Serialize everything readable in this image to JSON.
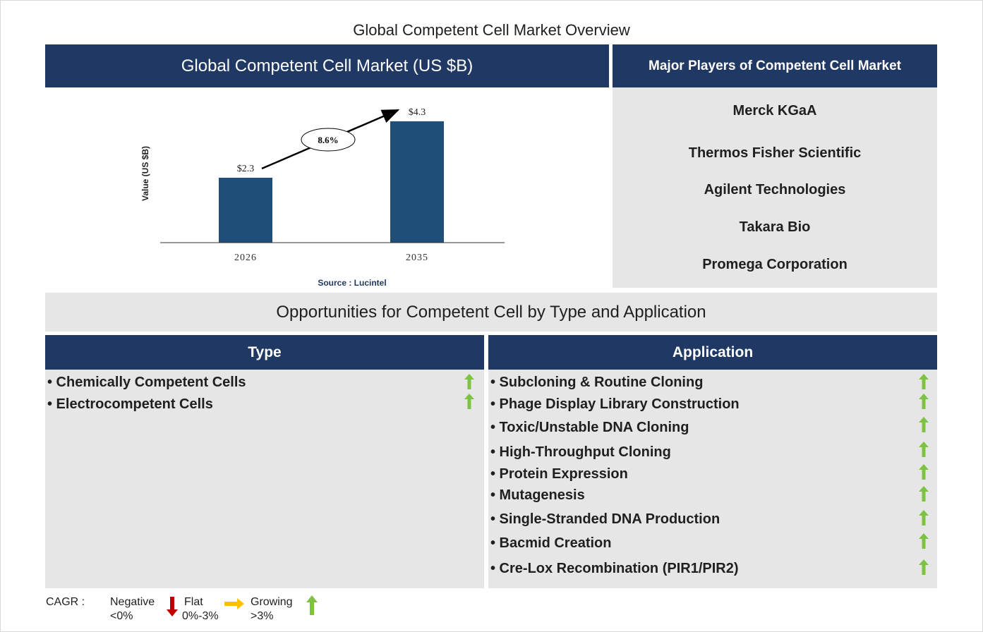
{
  "page_title": "Global Competent Cell Market Overview",
  "chart_header": "Global Competent Cell Market (US $B)",
  "players_header": "Major Players of Competent Cell Market",
  "players": [
    "Merck KGaA",
    "Thermos Fisher Scientific",
    "Agilent Technologies",
    "Takara Bio",
    "Promega Corporation"
  ],
  "opportunities_title": "Opportunities for Competent Cell by Type and Application",
  "type_header": "Type",
  "application_header": "Application",
  "type_items": [
    "• Chemically Competent Cells",
    "• Electrocompetent Cells"
  ],
  "application_items": [
    "• Subcloning & Routine Cloning",
    "• Phage Display Library Construction",
    "• Toxic/Unstable DNA Cloning",
    "• High-Throughput Cloning",
    "• Protein Expression",
    "• Mutagenesis",
    "• Single-Stranded DNA Production",
    "• Bacmid Creation",
    "• Cre-Lox Recombination (PIR1/PIR2)"
  ],
  "type_trend": [
    "growing",
    "growing"
  ],
  "application_trend": [
    "growing",
    "growing",
    "growing",
    "growing",
    "growing",
    "growing",
    "growing",
    "growing",
    "growing"
  ],
  "legend": {
    "cagr_label": "CAGR  :",
    "negative_label": "Negative",
    "negative_range": "<0%",
    "flat_label": "Flat",
    "flat_range": "0%-3%",
    "growing_label": "Growing",
    "growing_range": ">3%"
  },
  "colors": {
    "navy": "#203864",
    "bar": "#1f4e79",
    "panel": "#e6e6e6",
    "growing": "#7dc242",
    "flat": "#ffc000",
    "negative": "#c00000"
  },
  "chart_data": {
    "type": "bar",
    "categories": [
      "2026",
      "2035"
    ],
    "values": [
      2.3,
      4.3
    ],
    "value_labels": [
      "$2.3",
      "$4.3"
    ],
    "ylabel": "Value (US $B)",
    "ylim": [
      0,
      4.3
    ],
    "cagr_annotation": "8.6%",
    "source": "Source : Lucintel"
  }
}
